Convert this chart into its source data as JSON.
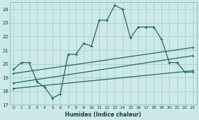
{
  "xlabel": "Humidex (Indice chaleur)",
  "bg_color": "#cce8e8",
  "line_color": "#1a6b60",
  "grid_color": "#aacfcf",
  "xlim": [
    -0.5,
    23.5
  ],
  "ylim": [
    17,
    24.5
  ],
  "yticks": [
    17,
    18,
    19,
    20,
    21,
    22,
    23,
    24
  ],
  "xticks": [
    0,
    1,
    2,
    3,
    4,
    5,
    6,
    7,
    8,
    9,
    10,
    11,
    12,
    13,
    14,
    15,
    16,
    17,
    18,
    19,
    20,
    21,
    22,
    23
  ],
  "line1_x": [
    0,
    1,
    2,
    3,
    4,
    5,
    6,
    7,
    8,
    9,
    10,
    11,
    12,
    13,
    14,
    15,
    16,
    17,
    18,
    19,
    20,
    21,
    22,
    23
  ],
  "line1_y": [
    19.6,
    20.1,
    20.1,
    18.7,
    18.3,
    17.5,
    17.8,
    20.7,
    20.7,
    21.5,
    21.3,
    23.2,
    23.2,
    24.3,
    24.0,
    21.9,
    22.7,
    22.7,
    22.7,
    21.8,
    20.1,
    20.1,
    19.4,
    19.4
  ],
  "line2_x": [
    0,
    23
  ],
  "line2_y": [
    19.3,
    21.2
  ],
  "line3_x": [
    0,
    23
  ],
  "line3_y": [
    18.6,
    20.6
  ],
  "line4_x": [
    0,
    23
  ],
  "line4_y": [
    18.2,
    19.5
  ]
}
